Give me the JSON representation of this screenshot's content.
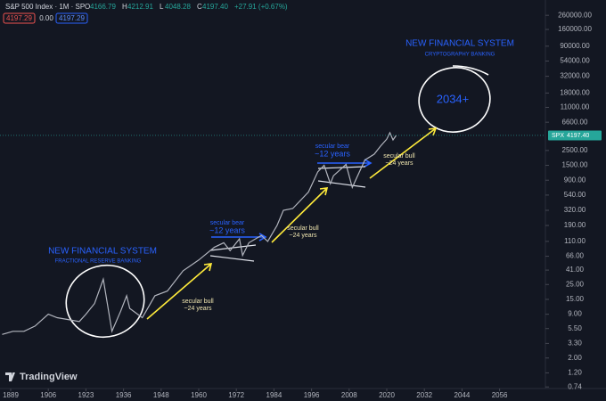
{
  "header": {
    "symbol": "S&P 500 Index · 1M · SP",
    "ohlc": [
      {
        "key": "O",
        "value": "4166.79"
      },
      {
        "key": "H",
        "value": "4212.91"
      },
      {
        "key": "L",
        "value": "4048.28"
      },
      {
        "key": "C",
        "value": "4197.40"
      }
    ],
    "change": "+27.91 (+0.67%)",
    "bid": "4197.29",
    "spread": "0.00",
    "ask": "4197.29"
  },
  "logo": "TradingView",
  "chart_data": {
    "type": "line",
    "color": "#b2b5be",
    "log_scale": true,
    "x": [
      1885,
      1890,
      1895,
      1900,
      1906,
      1910,
      1915,
      1920,
      1923,
      1926,
      1929,
      1932,
      1935,
      1937,
      1938,
      1942,
      1946,
      1950,
      1955,
      1960,
      1965,
      1968,
      1970,
      1973,
      1974,
      1976,
      1980,
      1982,
      1985,
      1987,
      1990,
      1995,
      1998,
      2000,
      2002,
      2003,
      2007,
      2009,
      2013,
      2016,
      2018,
      2020,
      2021,
      2022,
      2023
    ],
    "values": [
      4.5,
      5,
      5,
      6,
      9,
      8,
      7.5,
      7,
      9,
      13,
      30,
      5,
      10,
      17,
      11,
      8,
      17,
      20,
      40,
      58,
      90,
      105,
      80,
      120,
      68,
      105,
      135,
      110,
      190,
      320,
      340,
      600,
      1200,
      1500,
      800,
      1050,
      1550,
      700,
      1800,
      2200,
      2900,
      3700,
      4600,
      3600,
      4197.4
    ],
    "price_tag": {
      "symbol": "SPX",
      "label": "4197.40"
    },
    "xlim": [
      1884,
      2070
    ],
    "xticks": [
      1889,
      1906,
      1923,
      1936,
      1948,
      1960,
      1972,
      1984,
      1996,
      2008,
      2020,
      2032,
      2044,
      2056
    ],
    "ylim": [
      0.62,
      440000
    ],
    "yticks": [
      {
        "value": 260000,
        "label": "260000.00"
      },
      {
        "value": 160000,
        "label": "160000.00"
      },
      {
        "value": 90000,
        "label": "90000.00"
      },
      {
        "value": 54000,
        "label": "54000.00"
      },
      {
        "value": 32000,
        "label": "32000.00"
      },
      {
        "value": 18000,
        "label": "18000.00"
      },
      {
        "value": 11000,
        "label": "11000.00"
      },
      {
        "value": 6600,
        "label": "6600.00"
      },
      {
        "value": 2500,
        "label": "2500.00"
      },
      {
        "value": 1500,
        "label": "1500.00"
      },
      {
        "value": 900,
        "label": "900.00"
      },
      {
        "value": 540,
        "label": "540.00"
      },
      {
        "value": 320,
        "label": "320.00"
      },
      {
        "value": 190,
        "label": "190.00"
      },
      {
        "value": 110,
        "label": "110.00"
      },
      {
        "value": 66,
        "label": "66.00"
      },
      {
        "value": 41,
        "label": "41.00"
      },
      {
        "value": 25,
        "label": "25.00"
      },
      {
        "value": 15,
        "label": "15.00"
      },
      {
        "value": 9,
        "label": "9.00"
      },
      {
        "value": 5.5,
        "label": "5.50"
      },
      {
        "value": 3.3,
        "label": "3.30"
      },
      {
        "value": 2,
        "label": "2.00"
      },
      {
        "value": 1.2,
        "label": "1.20"
      },
      {
        "value": 0.74,
        "label": "0.74"
      }
    ],
    "annotations": [
      "NEW FINANCIAL SYSTEM",
      "CRYPTOGRAPHY BANKING",
      "2034+",
      "secular bull",
      "~24 years",
      "secular bear",
      "~12 years",
      "secular bull",
      "~24 years",
      "secular bear",
      "~12 years",
      "secular bull",
      "~24 years",
      "NEW FINANCIAL SYSTEM",
      "FRACTIONAL RESERVE BANKING"
    ]
  }
}
